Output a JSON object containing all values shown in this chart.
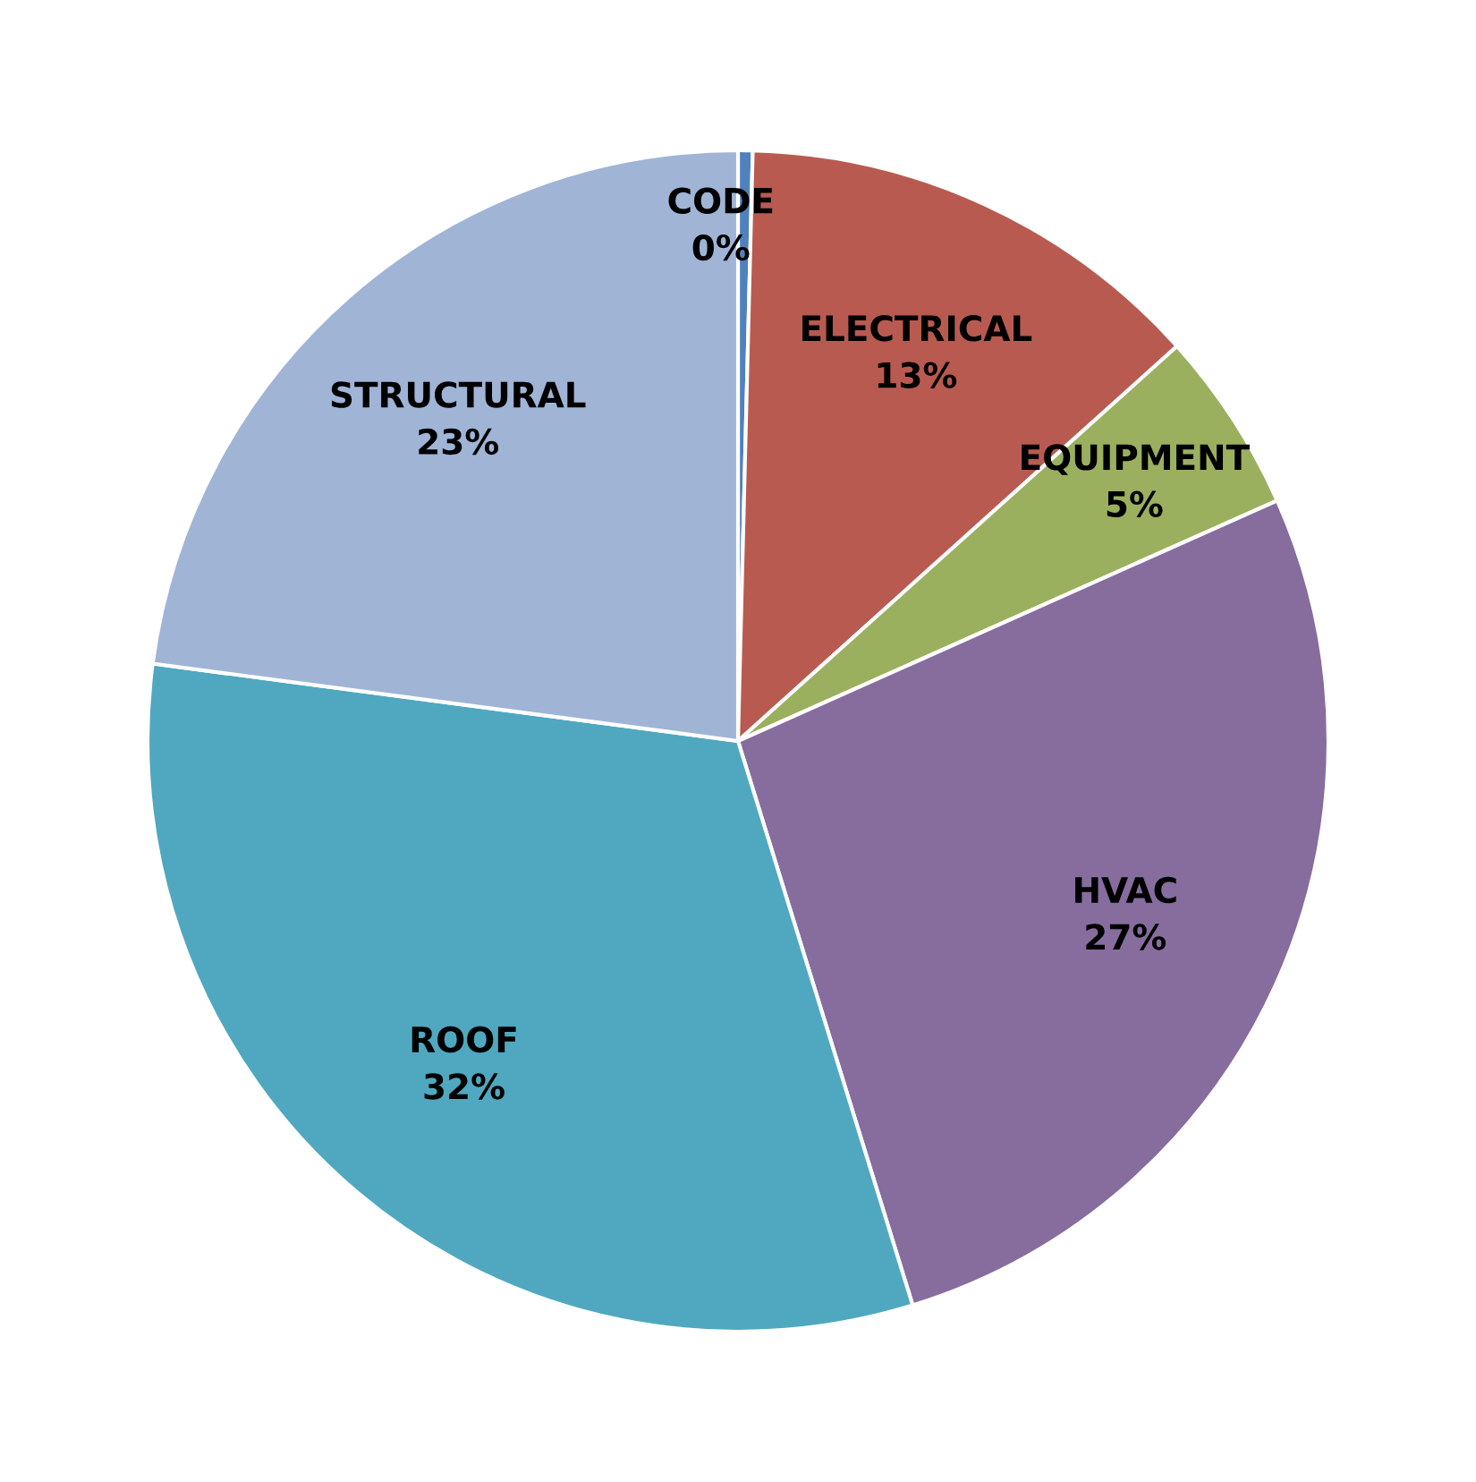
{
  "chart_data": {
    "type": "pie",
    "categories": [
      "CODE",
      "ELECTRICAL",
      "EQUIPMENT",
      "HVAC",
      "ROOF",
      "STRUCTURAL"
    ],
    "values": [
      0.4,
      13,
      5,
      27,
      32,
      23
    ],
    "value_labels": [
      "0%",
      "13%",
      "5%",
      "27%",
      "32%",
      "23%"
    ],
    "colors": [
      "#4f81bd",
      "#b95a51",
      "#9bb05f",
      "#866d9e",
      "#4fa8c0",
      "#a0b4d6"
    ]
  }
}
